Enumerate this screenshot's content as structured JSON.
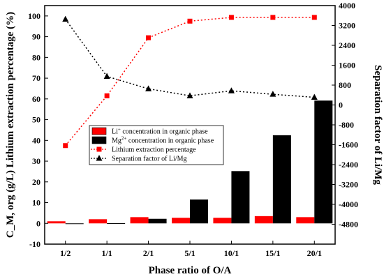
{
  "chart_data": {
    "type": "bar",
    "xlabel": "Phase ratio of O/A",
    "ylabel_left": "C_M, org (g/L) Lithium extraction percentage (%)",
    "ylabel_right": "Separation factor of Li/Mg",
    "categories": [
      "1/2",
      "1/1",
      "2/1",
      "5/1",
      "10/1",
      "15/1",
      "20/1"
    ],
    "ylim_left": [
      -10,
      105
    ],
    "yticks_left": [
      -10,
      0,
      10,
      20,
      30,
      40,
      50,
      60,
      70,
      80,
      90,
      100
    ],
    "ylim_right": [
      -5600,
      4000
    ],
    "yticks_right": [
      -4800,
      -4000,
      -3200,
      -2400,
      -1600,
      -800,
      0,
      800,
      1600,
      2400,
      3200,
      4000
    ],
    "series": [
      {
        "name": "Li+ concentration in organic phase",
        "kind": "bar",
        "axis": "left",
        "color": "#ff0000",
        "values": [
          1.0,
          2.0,
          3.0,
          2.7,
          2.7,
          3.5,
          3.0
        ]
      },
      {
        "name": "Mg2+ concentration in organic phase",
        "kind": "bar",
        "axis": "left",
        "color": "#000000",
        "values": [
          -0.3,
          0.1,
          2.2,
          11.5,
          25.2,
          42.5,
          59.2
        ]
      },
      {
        "name": "Lithium extraction percentage",
        "kind": "line",
        "axis": "left",
        "color": "#ff0000",
        "marker": "square",
        "values": [
          37.5,
          61.5,
          89.5,
          97.5,
          99.3,
          99.3,
          99.3
        ]
      },
      {
        "name": "Separation factor of Li/Mg",
        "kind": "line",
        "axis": "right",
        "color": "#000000",
        "marker": "triangle",
        "values": [
          3450,
          1150,
          650,
          370,
          570,
          430,
          310
        ]
      }
    ],
    "legend": {
      "position": "center-left",
      "items": [
        {
          "pre": "Li",
          "sup": "+",
          "post": " concentration in organic phase"
        },
        {
          "pre": "Mg",
          "sup": "2+",
          "post": " concentration in organic phase"
        },
        {
          "pre": "Lithium extraction percentage",
          "sup": "",
          "post": ""
        },
        {
          "pre": "Separation factor of Li/Mg",
          "sup": "",
          "post": ""
        }
      ]
    }
  }
}
